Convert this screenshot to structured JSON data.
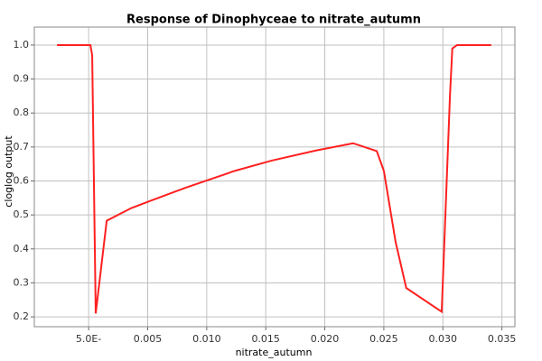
{
  "chart_data": {
    "type": "line",
    "title": "Response of Dinophyceae to nitrate_autumn",
    "x_label": "nitrate_autumn",
    "y_label": "cloglog output",
    "x": [
      -0.00268,
      0.00015,
      0.0003,
      0.0006,
      0.00153,
      0.0036,
      0.0055,
      0.0082,
      0.0124,
      0.0155,
      0.0193,
      0.0224,
      0.0244,
      0.025,
      0.026,
      0.0269,
      0.0299,
      0.0306,
      0.0308,
      0.0312,
      0.0341
    ],
    "series": [
      {
        "name": "Dinophyceae",
        "color": "#ff2020",
        "values": [
          1.0,
          1.0,
          0.97,
          0.21,
          0.483,
          0.52,
          0.545,
          0.58,
          0.63,
          0.66,
          0.69,
          0.711,
          0.688,
          0.63,
          0.42,
          0.285,
          0.215,
          0.85,
          0.99,
          1.0,
          1.0
        ]
      }
    ],
    "xlim": [
      -0.0046,
      0.0361
    ],
    "xticks": [
      {
        "value": 0,
        "label": "5.0E-"
      },
      {
        "value": 0.005,
        "label": "0.005"
      },
      {
        "value": 0.01,
        "label": "0.010"
      },
      {
        "value": 0.015,
        "label": "0.015"
      },
      {
        "value": 0.02,
        "label": "0.020"
      },
      {
        "value": 0.025,
        "label": "0.025"
      },
      {
        "value": 0.03,
        "label": "0.030"
      },
      {
        "value": 0.035,
        "label": "0.035"
      }
    ],
    "ylim": [
      0.171,
      1.053
    ],
    "yticks": [
      {
        "value": 0.2,
        "label": "0.2"
      },
      {
        "value": 0.3,
        "label": "0.3"
      },
      {
        "value": 0.4,
        "label": "0.4"
      },
      {
        "value": 0.5,
        "label": "0.5"
      },
      {
        "value": 0.6,
        "label": "0.6"
      },
      {
        "value": 0.7,
        "label": "0.7"
      },
      {
        "value": 0.8,
        "label": "0.8"
      },
      {
        "value": 0.9,
        "label": "0.9"
      },
      {
        "value": 1.0,
        "label": "1.0"
      }
    ],
    "grid": true
  }
}
